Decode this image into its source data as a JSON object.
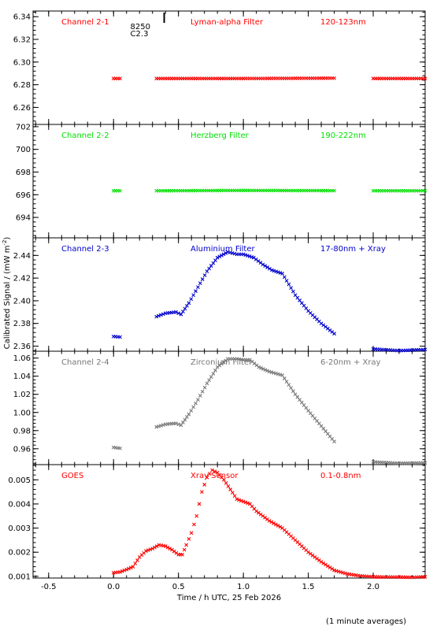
{
  "chart_data": {
    "type": "scatter",
    "xlabel": "Time / h UTC, 25 Feb 2026",
    "ylabel": "Calibrated Signal / (mW m",
    "ylabel_sup": "-2",
    "ylabel_close": ")",
    "footnote": "(1 minute averages)",
    "xlim": [
      -0.62,
      2.4
    ],
    "xticks": [
      "-0.5",
      "0.0",
      "0.5",
      "1.0",
      "1.5",
      "2.0"
    ],
    "xtick_values": [
      -0.5,
      0,
      0.5,
      1.0,
      1.5,
      2.0
    ],
    "annotation": {
      "line1": "8250",
      "line2": "C2.3",
      "x": 0.39
    },
    "panels": [
      {
        "channel": "Channel 2-1",
        "filter": "Lyman-alpha Filter",
        "band": "120-123nm",
        "color": "#ff0000",
        "ylim": [
          6.245,
          6.345
        ],
        "yticks": [
          "6.26",
          "6.28",
          "6.30",
          "6.32",
          "6.34"
        ],
        "ytick_values": [
          6.26,
          6.28,
          6.3,
          6.32,
          6.34
        ],
        "segments": [
          {
            "x": [
              0.0,
              0.05
            ],
            "y": [
              6.2855,
              6.2855
            ]
          },
          {
            "x": [
              0.33,
              1.0,
              1.7
            ],
            "y": [
              6.2855,
              6.2855,
              6.2858
            ]
          },
          {
            "x": [
              2.0,
              2.4
            ],
            "y": [
              6.2855,
              6.2855
            ]
          }
        ]
      },
      {
        "channel": "Channel 2-2",
        "filter": "Herzberg Filter",
        "band": "190-222nm",
        "color": "#00e000",
        "ylim": [
          692.2,
          702.2
        ],
        "yticks": [
          "694",
          "696",
          "698",
          "700",
          "702"
        ],
        "ytick_values": [
          694,
          696,
          698,
          700,
          702
        ],
        "segments": [
          {
            "x": [
              0.0,
              0.05
            ],
            "y": [
              696.35,
              696.35
            ]
          },
          {
            "x": [
              0.33,
              1.0,
              1.7
            ],
            "y": [
              696.35,
              696.38,
              696.36
            ]
          },
          {
            "x": [
              2.0,
              2.4
            ],
            "y": [
              696.35,
              696.35
            ]
          }
        ]
      },
      {
        "channel": "Channel 2-3",
        "filter": "Aluminium Filter",
        "band": "17-80nm + Xray",
        "color": "#0000cc",
        "ylim": [
          2.3555,
          2.4555
        ],
        "yticks": [
          "2.36",
          "2.38",
          "2.40",
          "2.42",
          "2.44"
        ],
        "ytick_values": [
          2.36,
          2.38,
          2.4,
          2.42,
          2.44
        ],
        "segments": [
          {
            "x": [
              0.0,
              0.05
            ],
            "y": [
              2.3685,
              2.368
            ]
          },
          {
            "x": [
              0.33,
              0.4,
              0.48,
              0.52,
              0.58,
              0.65,
              0.72,
              0.8,
              0.88,
              0.95,
              1.0,
              1.08,
              1.15,
              1.22,
              1.3,
              1.4,
              1.5,
              1.6,
              1.7
            ],
            "y": [
              2.386,
              2.389,
              2.39,
              2.388,
              2.398,
              2.412,
              2.426,
              2.438,
              2.443,
              2.441,
              2.441,
              2.438,
              2.432,
              2.427,
              2.424,
              2.405,
              2.391,
              2.38,
              2.371
            ]
          },
          {
            "x": [
              2.0,
              2.2,
              2.4
            ],
            "y": [
              2.3575,
              2.356,
              2.357
            ]
          }
        ]
      },
      {
        "channel": "Channel 2-4",
        "filter": "Zirconium Filter",
        "band": "6-20nm + Xray",
        "color": "#777777",
        "ylim": [
          0.9425,
          1.0675
        ],
        "yticks": [
          "0.96",
          "0.98",
          "1.00",
          "1.02",
          "1.04",
          "1.06"
        ],
        "ytick_values": [
          0.96,
          0.98,
          1.0,
          1.02,
          1.04,
          1.06
        ],
        "segments": [
          {
            "x": [
              0.0,
              0.05
            ],
            "y": [
              0.9615,
              0.9605
            ]
          },
          {
            "x": [
              0.33,
              0.4,
              0.48,
              0.52,
              0.58,
              0.65,
              0.72,
              0.8,
              0.88,
              0.95,
              1.0,
              1.05,
              1.12,
              1.2,
              1.3,
              1.4,
              1.5,
              1.6,
              1.7
            ],
            "y": [
              0.984,
              0.987,
              0.988,
              0.986,
              0.998,
              1.014,
              1.032,
              1.05,
              1.059,
              1.059,
              1.058,
              1.058,
              1.05,
              1.045,
              1.041,
              1.02,
              1.002,
              0.985,
              0.968
            ]
          },
          {
            "x": [
              2.0,
              2.2,
              2.4
            ],
            "y": [
              0.9455,
              0.944,
              0.9445
            ]
          }
        ]
      },
      {
        "channel": "GOES",
        "filter": "Xray Sensor",
        "band": "0.1-0.8nm",
        "color": "#ff0000",
        "ylim": [
          0.00093,
          0.00563
        ],
        "yticks": [
          "0.001",
          "0.002",
          "0.003",
          "0.004",
          "0.005"
        ],
        "ytick_values": [
          0.001,
          0.002,
          0.003,
          0.004,
          0.005
        ],
        "segments": [
          {
            "x": [
              0.0,
              0.05,
              0.1,
              0.15,
              0.2,
              0.25,
              0.3,
              0.35,
              0.4,
              0.45,
              0.5,
              0.53,
              0.56,
              0.6,
              0.64,
              0.68,
              0.72,
              0.76,
              0.8,
              0.85,
              0.9,
              0.95,
              1.0,
              1.05,
              1.1,
              1.2,
              1.3,
              1.4,
              1.5,
              1.6,
              1.7,
              1.8,
              1.9,
              2.0,
              2.1,
              2.2,
              2.3,
              2.4
            ],
            "y": [
              0.00115,
              0.00118,
              0.00128,
              0.0014,
              0.0018,
              0.00205,
              0.00215,
              0.0023,
              0.00225,
              0.0021,
              0.0019,
              0.0019,
              0.0023,
              0.0028,
              0.0035,
              0.0045,
              0.0051,
              0.0054,
              0.0053,
              0.005,
              0.0046,
              0.0042,
              0.0041,
              0.004,
              0.0037,
              0.0033,
              0.003,
              0.0025,
              0.002,
              0.0016,
              0.00125,
              0.0011,
              0.00102,
              0.00098,
              0.00097,
              0.00097,
              0.00096,
              0.00098
            ]
          }
        ]
      }
    ]
  }
}
